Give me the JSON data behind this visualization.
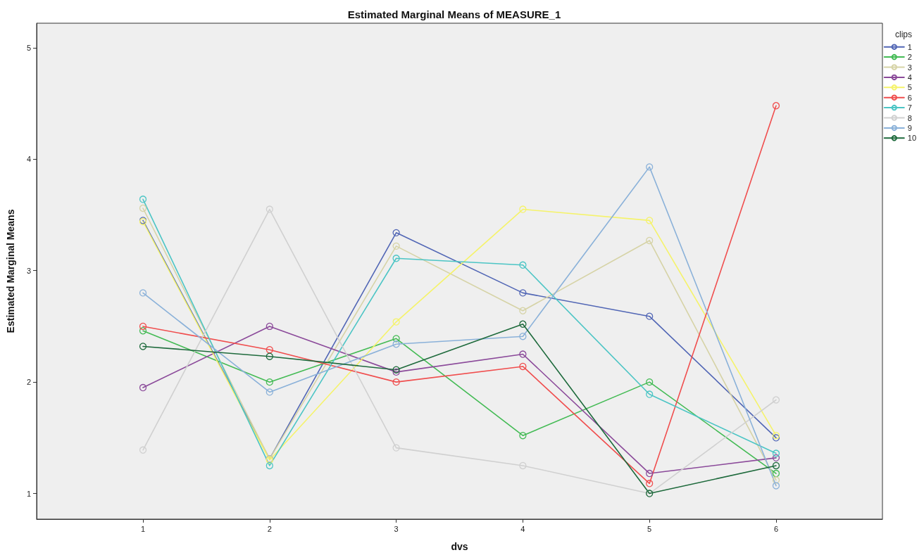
{
  "chart_data": {
    "type": "line",
    "title": "Estimated Marginal Means of MEASURE_1",
    "xlabel": "dvs",
    "ylabel": "Estimated Marginal Means",
    "legend_title": "clips",
    "x": [
      1,
      2,
      3,
      4,
      5,
      6
    ],
    "xlim": [
      0.16,
      6.84
    ],
    "xticks": [
      1,
      2,
      3,
      4,
      5,
      6
    ],
    "ylim": [
      0.77,
      5.22
    ],
    "yticks": [
      1,
      2,
      3,
      4,
      5
    ],
    "grid": false,
    "legend": "right",
    "marker": "circle",
    "line_style": "solid",
    "series": [
      {
        "name": "1",
        "color": "#5166b5",
        "values": [
          3.45,
          1.31,
          3.34,
          2.8,
          2.59,
          1.5
        ]
      },
      {
        "name": "2",
        "color": "#44bb55",
        "values": [
          2.46,
          2.0,
          2.39,
          1.52,
          2.0,
          1.18
        ]
      },
      {
        "name": "3",
        "color": "#d6d3a6",
        "values": [
          3.56,
          1.31,
          3.22,
          2.64,
          3.27,
          1.12
        ]
      },
      {
        "name": "4",
        "color": "#8b4a9a",
        "values": [
          1.95,
          2.5,
          2.09,
          2.25,
          1.18,
          1.32
        ]
      },
      {
        "name": "5",
        "color": "#f5f36a",
        "values": [
          3.44,
          1.3,
          2.54,
          3.55,
          3.45,
          1.52
        ]
      },
      {
        "name": "6",
        "color": "#f04e4e",
        "values": [
          2.5,
          2.29,
          2.0,
          2.14,
          1.09,
          4.48
        ]
      },
      {
        "name": "7",
        "color": "#4cc5c5",
        "values": [
          3.64,
          1.25,
          3.11,
          3.05,
          1.89,
          1.36
        ]
      },
      {
        "name": "8",
        "color": "#d0d0d0",
        "values": [
          1.39,
          3.55,
          1.41,
          1.25,
          1.0,
          1.84
        ]
      },
      {
        "name": "9",
        "color": "#8ab1d9",
        "values": [
          2.8,
          1.91,
          2.34,
          2.41,
          3.93,
          1.07
        ]
      },
      {
        "name": "10",
        "color": "#1e6a3c",
        "values": [
          2.32,
          2.23,
          2.11,
          2.52,
          1.0,
          1.25
        ]
      }
    ]
  }
}
